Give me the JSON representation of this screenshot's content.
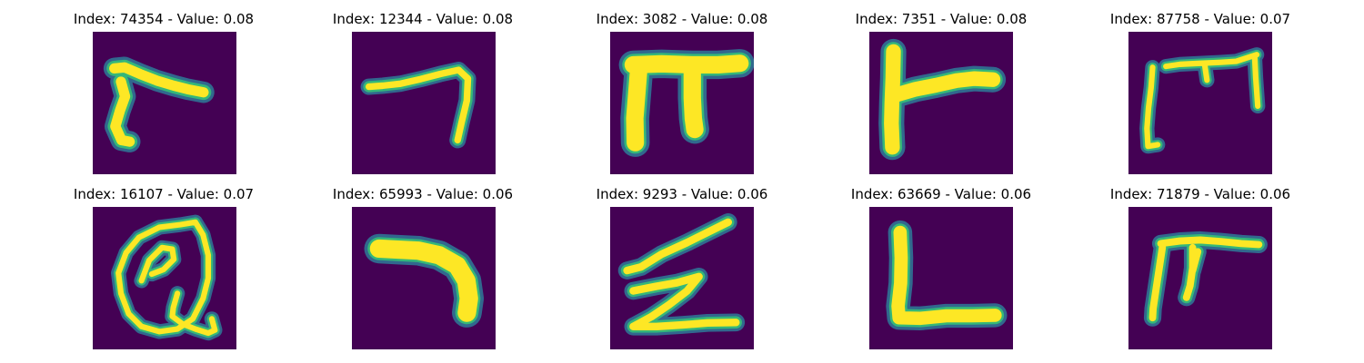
{
  "figure": {
    "background_color": "#440154",
    "stroke_color": "#fde725",
    "edge_colors": [
      "#b5de2b",
      "#6ece58",
      "#35b779",
      "#1f9e89",
      "#26828e",
      "#31688e"
    ],
    "panels": [
      {
        "index": "74354",
        "value": "0.08",
        "title": "Index: 74354 - Value: 0.08",
        "glyph": "gamma-like stroke"
      },
      {
        "index": "12344",
        "value": "0.08",
        "title": "Index: 12344 - Value: 0.08",
        "glyph": "seven-like stroke"
      },
      {
        "index": "3082",
        "value": "0.08",
        "title": "Index: 3082 - Value: 0.08",
        "glyph": "pi-like stroke"
      },
      {
        "index": "7351",
        "value": "0.08",
        "title": "Index: 7351 - Value: 0.08",
        "glyph": "F-like stroke"
      },
      {
        "index": "87758",
        "value": "0.07",
        "title": "Index: 87758 - Value: 0.07",
        "glyph": "open box stroke"
      },
      {
        "index": "16107",
        "value": "0.07",
        "title": "Index: 16107 - Value: 0.07",
        "glyph": "Q-like stroke"
      },
      {
        "index": "65993",
        "value": "0.06",
        "title": "Index: 65993 - Value: 0.06",
        "glyph": "bent bar stroke"
      },
      {
        "index": "9293",
        "value": "0.06",
        "title": "Index: 9293 - Value: 0.06",
        "glyph": "Z-like stroke"
      },
      {
        "index": "63669",
        "value": "0.06",
        "title": "Index: 63669 - Value: 0.06",
        "glyph": "L stroke"
      },
      {
        "index": "71879",
        "value": "0.06",
        "title": "Index: 71879 - Value: 0.06",
        "glyph": "pi-like stroke"
      }
    ]
  }
}
